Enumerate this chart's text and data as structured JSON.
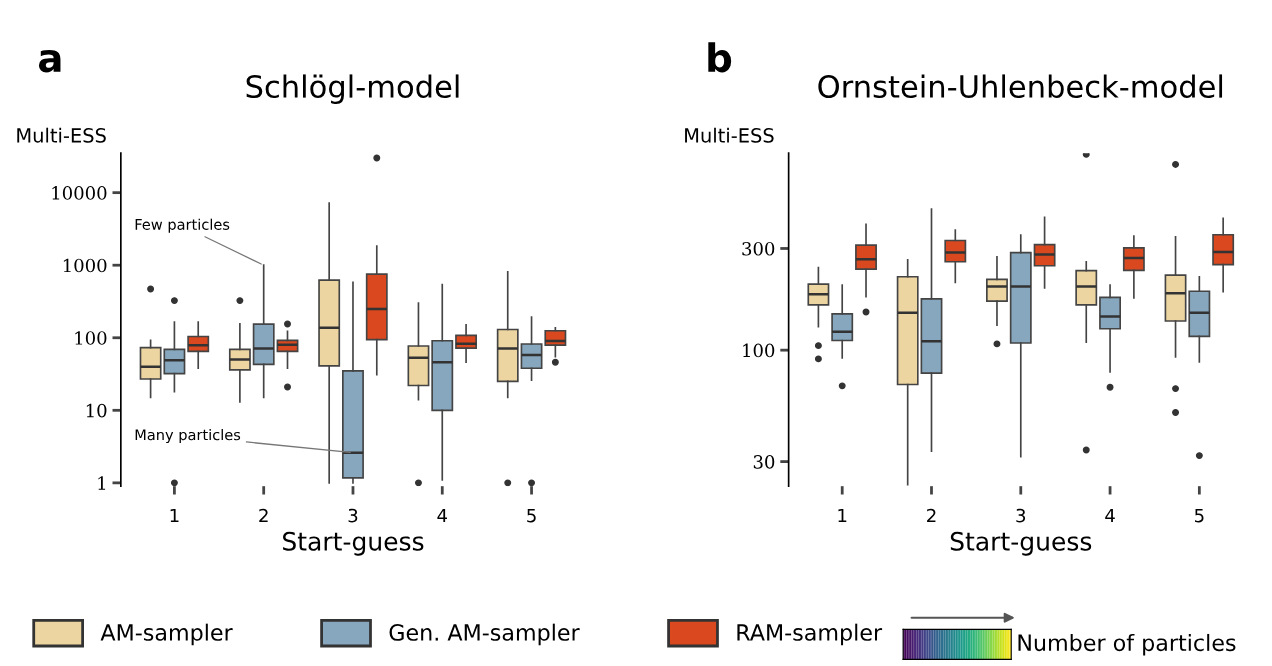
{
  "chart_data": [
    {
      "type": "box",
      "title": "Schlögl-model",
      "xlabel": "Start-guess",
      "ylabel": "Multi-ESS",
      "clabel": "Number of particles",
      "log": "y",
      "ylim": [
        0.9,
        35000
      ],
      "yticks": [
        1,
        10,
        100,
        1000,
        10000
      ],
      "categories": [
        "1",
        "2",
        "3",
        "4",
        "5"
      ],
      "legend": "bottom",
      "grid": false,
      "annotations": [
        "a",
        {
          "text": "Few particles",
          "x": "2",
          "y": 1000
        },
        {
          "text": "Many particles",
          "x": "3",
          "y": 2.6
        }
      ],
      "series": [
        {
          "name": "AM-sampler",
          "color": "#ecd5a0",
          "boxes": [
            {
              "low": 15,
              "q1": 27,
              "median": 40,
              "q3": 73,
              "high": 92,
              "outliers": [
                470
              ]
            },
            {
              "low": 13,
              "q1": 36,
              "median": 50,
              "q3": 69,
              "high": 155,
              "outliers": [
                325
              ]
            },
            {
              "low": 1,
              "q1": 41,
              "median": 137,
              "q3": 623,
              "high": 7200
            },
            {
              "low": 14,
              "q1": 22,
              "median": 53,
              "q3": 77,
              "high": 300,
              "outliers": [
                1
              ]
            },
            {
              "low": 15,
              "q1": 25,
              "median": 71,
              "q3": 130,
              "high": 810,
              "outliers": [
                1
              ]
            }
          ]
        },
        {
          "name": "Gen. AM-sampler",
          "color": "#86a7bd",
          "boxes": [
            {
              "low": 18,
              "q1": 32,
              "median": 49,
              "q3": 69,
              "high": 164,
              "outliers": [
                325,
                1
              ]
            },
            {
              "low": 15,
              "q1": 43,
              "median": 71,
              "q3": 154,
              "high": 1000
            },
            {
              "low": 1,
              "q1": 1.17,
              "median": 2.6,
              "q3": 35,
              "high": 580
            },
            {
              "low": 1.1,
              "q1": 10,
              "median": 46,
              "q3": 91,
              "high": 540
            },
            {
              "low": 26,
              "q1": 38,
              "median": 58,
              "q3": 82,
              "high": 192,
              "outliers": [
                1
              ]
            }
          ]
        },
        {
          "name": "RAM-sampler",
          "color": "#d9481e",
          "boxes": [
            {
              "low": 38,
              "q1": 65,
              "median": 79,
              "q3": 104,
              "high": 164
            },
            {
              "low": 38,
              "q1": 65,
              "median": 80,
              "q3": 92,
              "high": 123,
              "outliers": [
                155,
                21
              ]
            },
            {
              "low": 31,
              "q1": 94,
              "median": 250,
              "q3": 753,
              "high": 1840,
              "outliers": [
                30000
              ]
            },
            {
              "low": 46,
              "q1": 72,
              "median": 83,
              "q3": 108,
              "high": 151
            },
            {
              "low": 55,
              "q1": 79,
              "median": 90,
              "q3": 125,
              "high": 137,
              "outliers": [
                46
              ]
            }
          ]
        }
      ]
    },
    {
      "type": "box",
      "title": "Ornstein-Uhlenbeck-model",
      "xlabel": "Start-guess",
      "ylabel": "Multi-ESS",
      "log": "y",
      "ylim": [
        23,
        840
      ],
      "yticks": [
        30,
        100,
        300
      ],
      "categories": [
        "1",
        "2",
        "3",
        "4",
        "5"
      ],
      "grid": false,
      "annotations": [
        "b"
      ],
      "series": [
        {
          "color": "#ecd5a0",
          "boxes": [
            {
              "low": 129,
              "q1": 163,
              "median": 183,
              "q3": 204,
              "high": 244,
              "outliers": [
                91,
                105
              ]
            },
            {
              "low": 23.4,
              "q1": 69,
              "median": 150,
              "q3": 221,
              "high": 265
            },
            {
              "low": 131,
              "q1": 170,
              "median": 199,
              "q3": 215,
              "high": 274,
              "outliers": [
                107
              ]
            },
            {
              "low": 109,
              "q1": 163,
              "median": 199,
              "q3": 236,
              "high": 260,
              "outliers": [
                34,
                829
              ]
            },
            {
              "low": 93,
              "q1": 137,
              "median": 185,
              "q3": 225,
              "high": 340,
              "outliers": [
                66,
                51,
                744
              ]
            }
          ]
        },
        {
          "color": "#86a7bd",
          "boxes": [
            {
              "low": 92,
              "q1": 111,
              "median": 122,
              "q3": 148,
              "high": 202,
              "outliers": [
                68
              ]
            },
            {
              "low": 33.6,
              "q1": 78,
              "median": 110,
              "q3": 174,
              "high": 459
            },
            {
              "low": 31.6,
              "q1": 108,
              "median": 199,
              "q3": 287,
              "high": 347
            },
            {
              "low": 79,
              "q1": 126,
              "median": 144,
              "q3": 177,
              "high": 202,
              "outliers": [
                67
              ]
            },
            {
              "low": 88,
              "q1": 116,
              "median": 150,
              "q3": 189,
              "high": 221,
              "outliers": [
                32
              ]
            }
          ]
        },
        {
          "color": "#d9481e",
          "boxes": [
            {
              "low": 178,
              "q1": 240,
              "median": 267,
              "q3": 311,
              "high": 389,
              "outliers": [
                151
              ]
            },
            {
              "low": 208,
              "q1": 260,
              "median": 287,
              "q3": 327,
              "high": 366
            },
            {
              "low": 196,
              "q1": 249,
              "median": 281,
              "q3": 313,
              "high": 420
            },
            {
              "low": 176,
              "q1": 237,
              "median": 271,
              "q3": 302,
              "high": 343
            },
            {
              "low": 188,
              "q1": 252,
              "median": 289,
              "q3": 348,
              "high": 415
            }
          ]
        }
      ]
    }
  ]
}
